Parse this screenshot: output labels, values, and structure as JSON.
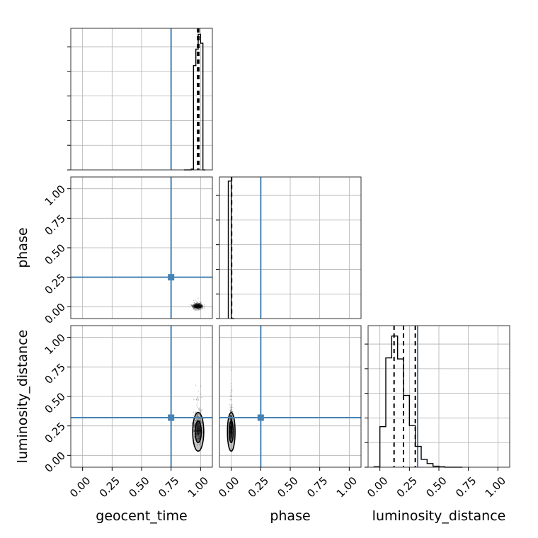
{
  "chart_data": {
    "type": "corner",
    "parameters": [
      "geocent_time",
      "phase",
      "luminosity_distance"
    ],
    "axis_range": [
      -0.1,
      1.1
    ],
    "ticks": [
      0.0,
      0.25,
      0.5,
      0.75,
      1.0
    ],
    "tick_labels": [
      "0.00",
      "0.25",
      "0.50",
      "0.75",
      "1.00"
    ],
    "grid": true,
    "truth_color": "#4682b4",
    "truths": {
      "geocent_time": 0.75,
      "phase": 0.25,
      "luminosity_distance": 0.32
    },
    "quantiles": {
      "geocent_time": [
        0.975,
        0.98,
        0.985
      ],
      "phase": [
        0.003
      ],
      "luminosity_distance": [
        0.12,
        0.2,
        0.3
      ]
    },
    "histograms": {
      "geocent_time": {
        "edges": [
          0.86,
          0.92,
          0.94,
          0.96,
          0.98,
          1.0,
          1.02,
          1.04
        ],
        "counts": [
          0,
          1,
          140,
          162,
          182,
          170,
          0
        ],
        "ymax": 190
      },
      "phase": {
        "edges": [
          -0.025,
          0.0,
          0.025
        ],
        "counts": [
          1000,
          0
        ],
        "ymax": 1030
      },
      "luminosity_distance": {
        "edges": [
          -0.05,
          0.0,
          0.05,
          0.1,
          0.15,
          0.2,
          0.25,
          0.3,
          0.35,
          0.4,
          0.45,
          0.5,
          0.55,
          0.6,
          0.65,
          0.7
        ],
        "counts": [
          1,
          78,
          210,
          252,
          208,
          138,
          80,
          40,
          15,
          7,
          2,
          1,
          0,
          0,
          0
        ],
        "ymax": 272
      }
    },
    "panels_2d": {
      "phase_vs_geocent_time": {
        "x_center": 0.975,
        "x_spread": 0.02,
        "y_center": 0.0,
        "y_spread": 0.012
      },
      "luminosity_distance_vs_geocent_time": {
        "x_center": 0.98,
        "x_spread": 0.02,
        "y_center": 0.2,
        "y_spread": 0.07
      },
      "luminosity_distance_vs_phase": {
        "x_center": 0.0,
        "x_spread": 0.006,
        "y_center": 0.2,
        "y_spread": 0.07
      }
    }
  }
}
